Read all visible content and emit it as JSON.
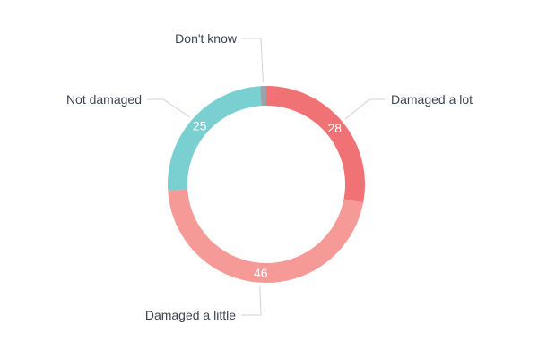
{
  "chart_data": {
    "type": "pie",
    "variant": "donut",
    "categories": [
      "Damaged a lot",
      "Damaged a little",
      "Not damaged",
      "Don't know"
    ],
    "values": [
      28,
      46,
      25,
      1
    ],
    "value_labels": [
      "28",
      "46",
      "25",
      ""
    ],
    "colors": [
      "#f07274",
      "#f59a96",
      "#7acfd0",
      "#9aa3ab"
    ],
    "title": "",
    "legend": "none"
  }
}
